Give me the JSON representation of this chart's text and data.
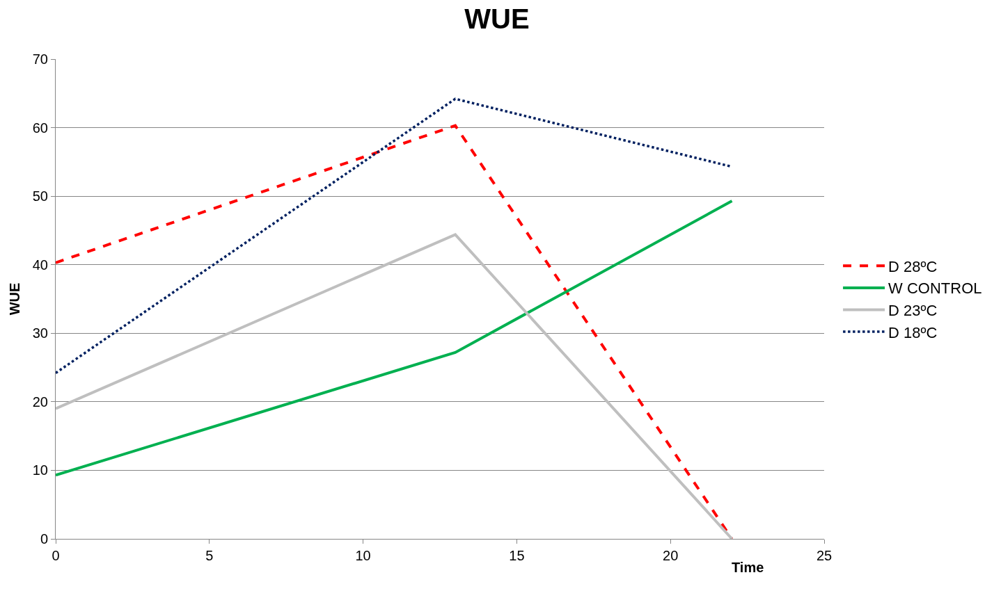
{
  "chart_data": {
    "type": "line",
    "title": "WUE",
    "xlabel": "Time",
    "ylabel": "WUE",
    "x": [
      0,
      13,
      22
    ],
    "series": [
      {
        "name": "D 28ºC",
        "color": "#ff0000",
        "line_style": "dashed",
        "values": [
          40.3,
          60.3,
          0
        ]
      },
      {
        "name": "W CONTROL",
        "color": "#00b050",
        "line_style": "solid",
        "values": [
          9.3,
          27.2,
          49.3
        ]
      },
      {
        "name": "D 23ºC",
        "color": "#bfbfbf",
        "line_style": "solid",
        "values": [
          19.0,
          44.4,
          0
        ]
      },
      {
        "name": "D 18ºC",
        "color": "#002060",
        "line_style": "dotted",
        "values": [
          24.2,
          64.2,
          54.3
        ]
      }
    ],
    "xlim": [
      0,
      25
    ],
    "xticks": [
      0,
      5,
      10,
      15,
      20,
      25
    ],
    "ylim": [
      0,
      70
    ],
    "yticks": [
      0,
      10,
      20,
      30,
      40,
      50,
      60,
      70
    ],
    "grid": "y",
    "legend": "right",
    "marker": "none"
  }
}
